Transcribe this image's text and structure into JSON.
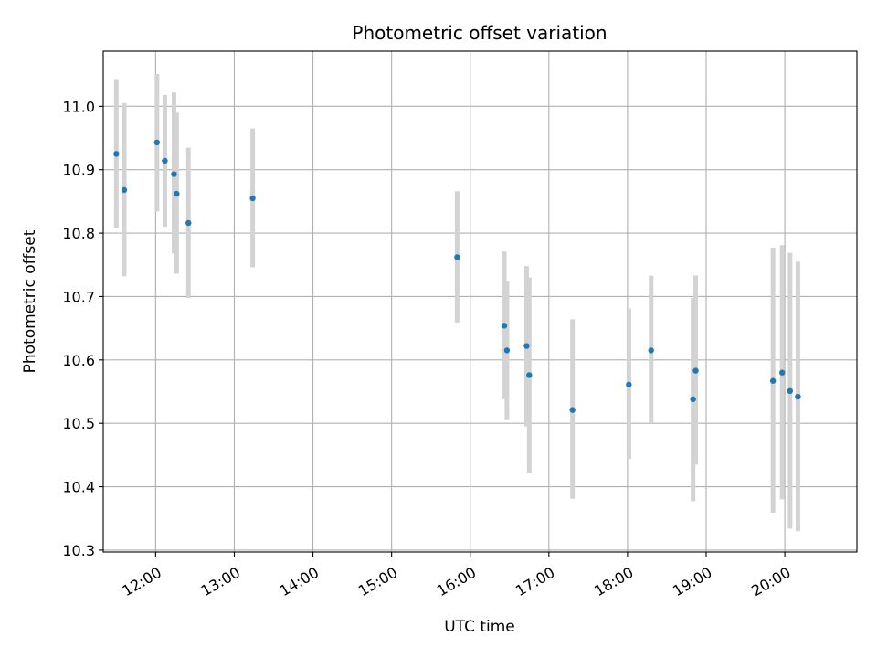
{
  "chart_data": {
    "type": "scatter",
    "title": "Photometric offset variation",
    "xlabel": "UTC time",
    "ylabel": "Photometric offset",
    "x_is_time": true,
    "xlim": [
      "11:20",
      "20:55"
    ],
    "ylim": [
      10.297,
      11.087
    ],
    "x_ticks": [
      "12:00",
      "13:00",
      "14:00",
      "15:00",
      "16:00",
      "17:00",
      "18:00",
      "19:00",
      "20:00"
    ],
    "y_ticks": [
      10.3,
      10.4,
      10.5,
      10.6,
      10.7,
      10.8,
      10.9,
      11.0
    ],
    "y_tick_labels": [
      "10.3",
      "10.4",
      "10.5",
      "10.6",
      "10.7",
      "10.8",
      "10.9",
      "11.0"
    ],
    "grid": true,
    "colors": {
      "point": "#1f77b4",
      "errorbar": "#d3d3d3",
      "grid": "#b0b0b0"
    },
    "series": [
      {
        "x": [
          "11:30",
          "11:36",
          "12:01",
          "12:07",
          "12:14",
          "12:16",
          "12:25",
          "13:14",
          "15:50",
          "16:26",
          "16:28",
          "16:43",
          "16:45",
          "17:18",
          "18:01",
          "18:18",
          "18:50",
          "18:52",
          "19:51",
          "19:58",
          "20:04",
          "20:10"
        ],
        "y": [
          10.925,
          10.868,
          10.943,
          10.914,
          10.893,
          10.862,
          10.816,
          10.855,
          10.762,
          10.654,
          10.615,
          10.622,
          10.576,
          10.521,
          10.561,
          10.615,
          10.538,
          10.583,
          10.567,
          10.58,
          10.551,
          10.542
        ],
        "yerr_low": [
          10.808,
          10.732,
          10.834,
          10.81,
          10.768,
          10.736,
          10.698,
          10.746,
          10.659,
          10.538,
          10.505,
          10.495,
          10.421,
          10.381,
          10.444,
          10.5,
          10.377,
          10.435,
          10.359,
          10.38,
          10.334,
          10.33
        ],
        "yerr_high": [
          11.043,
          11.005,
          11.051,
          11.018,
          11.022,
          10.99,
          10.935,
          10.965,
          10.866,
          10.771,
          10.724,
          10.748,
          10.73,
          10.664,
          10.681,
          10.733,
          10.698,
          10.733,
          10.777,
          10.781,
          10.769,
          10.755
        ]
      }
    ]
  }
}
